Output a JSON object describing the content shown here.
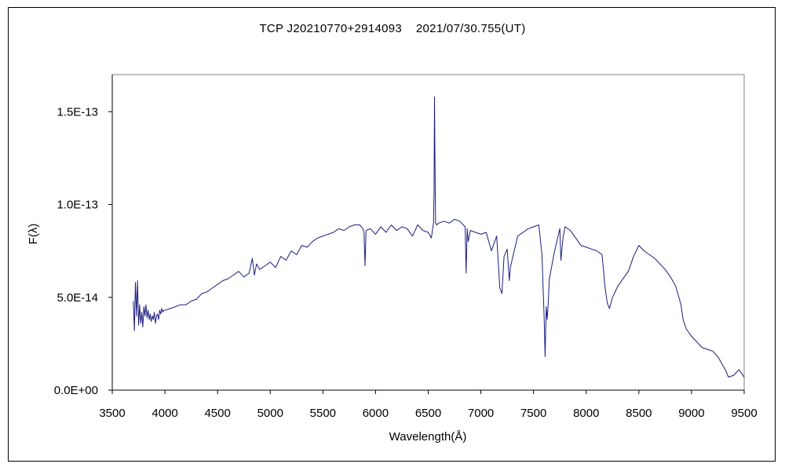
{
  "chart_data": {
    "type": "line",
    "title": "TCP J20210770+2914093    2021/07/30.755(UT)",
    "xlabel": "Wavelength(Å)",
    "ylabel": "F(λ)",
    "xlim": [
      3500,
      9500
    ],
    "ylim": [
      0,
      1.7e-13
    ],
    "xticks": [
      3500,
      4000,
      4500,
      5000,
      5500,
      6000,
      6500,
      7000,
      7500,
      8000,
      8500,
      9000,
      9500
    ],
    "xtick_labels": [
      "3500",
      "4000",
      "4500",
      "5000",
      "5500",
      "6000",
      "6500",
      "7000",
      "7500",
      "8000",
      "8500",
      "9000",
      "9500"
    ],
    "yticks": [
      0,
      5e-14,
      1e-13,
      1.5e-13
    ],
    "ytick_labels": [
      "0.0E+00",
      "5.0E-14",
      "1.0E-13",
      "1.5E-13"
    ],
    "grid": false,
    "line_color": "#1c1c80",
    "series": [
      {
        "x": [
          3700,
          3710,
          3720,
          3730,
          3740,
          3750,
          3760,
          3770,
          3780,
          3790,
          3800,
          3810,
          3820,
          3830,
          3840,
          3850,
          3860,
          3870,
          3880,
          3890,
          3900,
          3910,
          3920,
          3930,
          3940,
          3950,
          3960,
          3970,
          3980,
          3990,
          4000,
          4050,
          4100,
          4150,
          4200,
          4250,
          4300,
          4350,
          4400,
          4450,
          4500,
          4550,
          4600,
          4650,
          4700,
          4750,
          4800,
          4830,
          4850,
          4870,
          4900,
          4950,
          5000,
          5050,
          5100,
          5150,
          5200,
          5250,
          5300,
          5350,
          5400,
          5450,
          5500,
          5550,
          5600,
          5650,
          5700,
          5750,
          5800,
          5850,
          5880,
          5890,
          5900,
          5910,
          5950,
          6000,
          6050,
          6100,
          6150,
          6200,
          6250,
          6300,
          6350,
          6400,
          6450,
          6500,
          6530,
          6550,
          6555,
          6560,
          6563,
          6566,
          6570,
          6580,
          6600,
          6650,
          6700,
          6750,
          6800,
          6850,
          6860,
          6870,
          6880,
          6900,
          6950,
          7000,
          7050,
          7100,
          7150,
          7180,
          7200,
          7220,
          7250,
          7270,
          7280,
          7300,
          7350,
          7400,
          7450,
          7500,
          7550,
          7580,
          7600,
          7610,
          7620,
          7630,
          7640,
          7650,
          7700,
          7750,
          7760,
          7780,
          7800,
          7850,
          7900,
          7950,
          8000,
          8050,
          8100,
          8150,
          8180,
          8200,
          8220,
          8250,
          8300,
          8350,
          8400,
          8450,
          8500,
          8550,
          8600,
          8650,
          8700,
          8750,
          8800,
          8850,
          8900,
          8920,
          8950,
          9000,
          9050,
          9100,
          9150,
          9200,
          9250,
          9300,
          9330,
          9350,
          9400,
          9450,
          9500
        ],
        "y": [
          4.8e-14,
          3.2e-14,
          5.8e-14,
          4e-14,
          5.9e-14,
          3.5e-14,
          4.6e-14,
          3.6e-14,
          4.2e-14,
          3.4e-14,
          4.5e-14,
          4e-14,
          4.6e-14,
          3.9e-14,
          4.3e-14,
          3.8e-14,
          4.1e-14,
          3.7e-14,
          4e-14,
          3.8e-14,
          4.2e-14,
          3.6e-14,
          4e-14,
          4.1e-14,
          3.8e-14,
          4.3e-14,
          4.1e-14,
          4.4e-14,
          4.2e-14,
          4.3e-14,
          4.3e-14,
          4.4e-14,
          4.5e-14,
          4.6e-14,
          4.6e-14,
          4.8e-14,
          4.9e-14,
          5.2e-14,
          5.3e-14,
          5.5e-14,
          5.7e-14,
          5.9e-14,
          6e-14,
          6.2e-14,
          6.4e-14,
          6.1e-14,
          6.3e-14,
          7.1e-14,
          6.2e-14,
          6.8e-14,
          6.5e-14,
          6.7e-14,
          6.9e-14,
          6.6e-14,
          7.2e-14,
          7e-14,
          7.5e-14,
          7.3e-14,
          7.8e-14,
          7.7e-14,
          8e-14,
          8.2e-14,
          8.3e-14,
          8.4e-14,
          8.5e-14,
          8.7e-14,
          8.6e-14,
          8.8e-14,
          8.9e-14,
          8.9e-14,
          8.7e-14,
          8.5e-14,
          6.7e-14,
          8.6e-14,
          8.7e-14,
          8.4e-14,
          8.8e-14,
          8.5e-14,
          8.9e-14,
          8.6e-14,
          8.8e-14,
          8.7e-14,
          8.3e-14,
          8.9e-14,
          8.6e-14,
          8.5e-14,
          8.2e-14,
          9e-14,
          1.05e-13,
          1.58e-13,
          1.3e-13,
          1.1e-13,
          9e-14,
          8.9e-14,
          9e-14,
          9.1e-14,
          9e-14,
          9.2e-14,
          9.1e-14,
          8.8e-14,
          6.3e-14,
          8.7e-14,
          8e-14,
          8.6e-14,
          8.5e-14,
          8.4e-14,
          8.5e-14,
          7.5e-14,
          8.3e-14,
          5.5e-14,
          5.2e-14,
          7.2e-14,
          7.6e-14,
          5.9e-14,
          6.6e-14,
          7.1e-14,
          8.3e-14,
          8.5e-14,
          8.7e-14,
          8.8e-14,
          8.9e-14,
          7.3e-14,
          4e-14,
          1.8e-14,
          4.5e-14,
          3.8e-14,
          4.7e-14,
          6e-14,
          7.5e-14,
          8.7e-14,
          7e-14,
          8.2e-14,
          8.8e-14,
          8.6e-14,
          8.2e-14,
          7.8e-14,
          7.7e-14,
          7.6e-14,
          7.5e-14,
          7.3e-14,
          5.5e-14,
          4.7e-14,
          4.4e-14,
          5e-14,
          5.6e-14,
          6e-14,
          6.4e-14,
          7.2e-14,
          7.8e-14,
          7.5e-14,
          7.3e-14,
          7.1e-14,
          6.8e-14,
          6.5e-14,
          6.1e-14,
          5.6e-14,
          4.6e-14,
          3.8e-14,
          3.3e-14,
          2.9e-14,
          2.6e-14,
          2.3e-14,
          2.2e-14,
          2.1e-14,
          1.8e-14,
          1.3e-14,
          1e-14,
          7e-15,
          8e-15,
          1.1e-14,
          7e-15
        ]
      }
    ]
  }
}
